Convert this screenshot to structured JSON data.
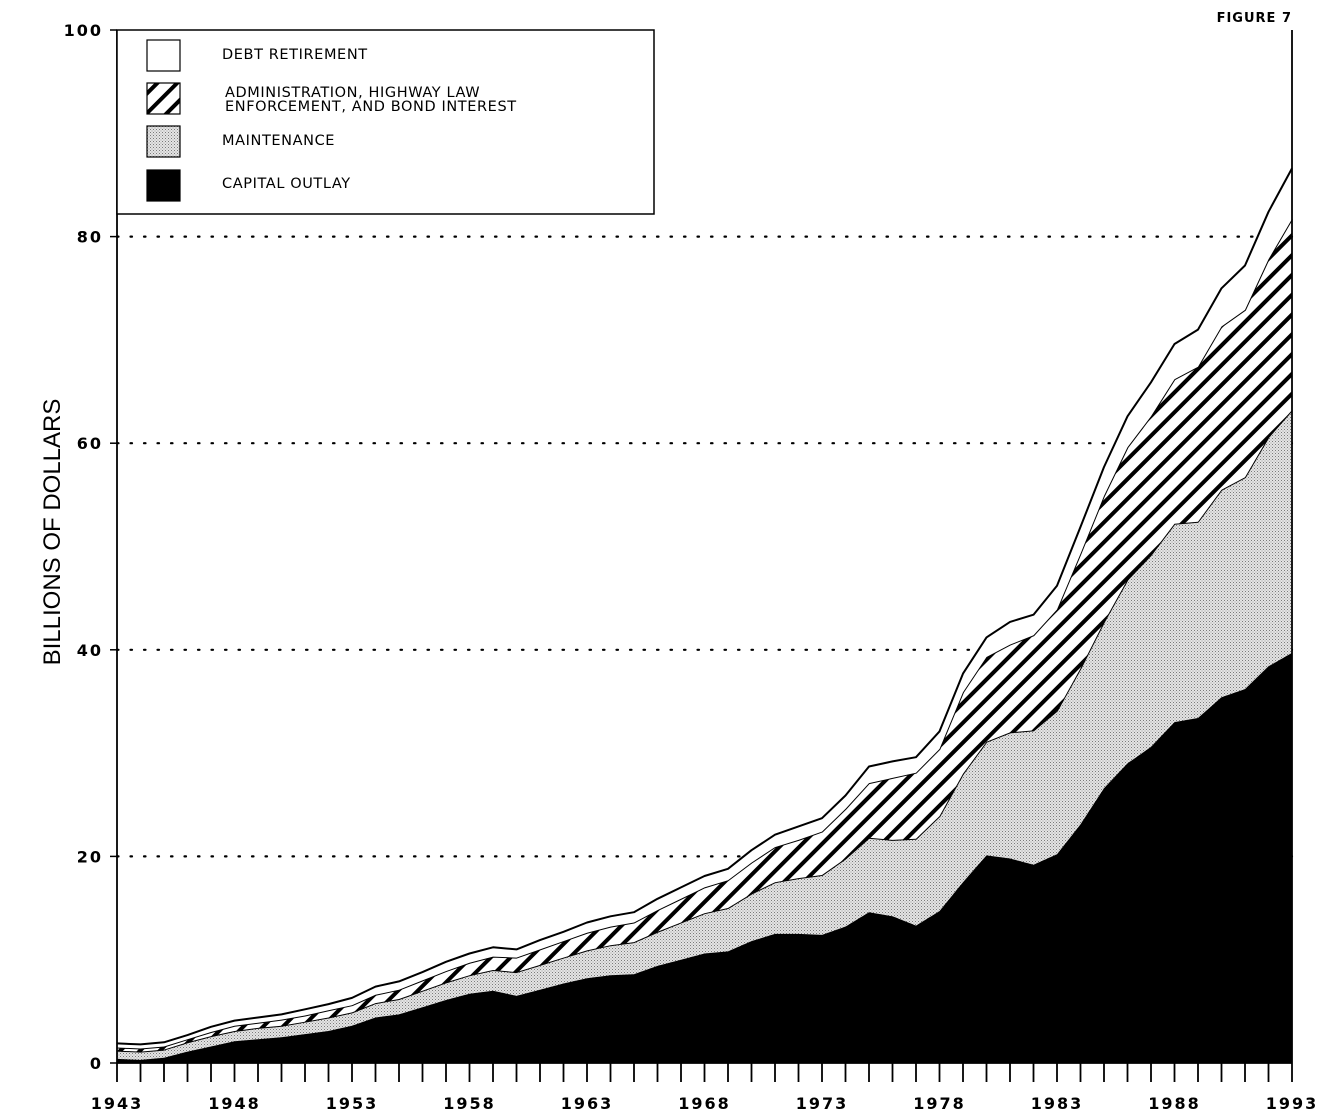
{
  "figure_label": "FIGURE 7",
  "chart_data": {
    "type": "area",
    "stacked": true,
    "ylabel": "BILLIONS OF DOLLARS",
    "xlabel": "",
    "ylim": [
      0,
      100
    ],
    "xlim": [
      1943,
      1993
    ],
    "y_ticks": [
      0,
      20,
      40,
      60,
      80,
      100
    ],
    "x_tick_labels": [
      1943,
      1948,
      1953,
      1958,
      1963,
      1968,
      1973,
      1978,
      1983,
      1988,
      1993
    ],
    "grid": "dotted horizontal at 20, 40, 60, 80",
    "legend_position": "top-left",
    "x": [
      1943,
      1944,
      1945,
      1946,
      1947,
      1948,
      1949,
      1950,
      1951,
      1952,
      1953,
      1954,
      1955,
      1956,
      1957,
      1958,
      1959,
      1960,
      1961,
      1962,
      1963,
      1964,
      1965,
      1966,
      1967,
      1968,
      1969,
      1970,
      1971,
      1972,
      1973,
      1974,
      1975,
      1976,
      1977,
      1978,
      1979,
      1980,
      1981,
      1982,
      1983,
      1984,
      1985,
      1986,
      1987,
      1988,
      1989,
      1990,
      1991,
      1992,
      1993
    ],
    "series": [
      {
        "name": "CAPITAL OUTLAY",
        "fill": "solid",
        "color": "#000000",
        "values": [
          0.4,
          0.3,
          0.5,
          1.1,
          1.6,
          2.1,
          2.3,
          2.5,
          2.8,
          3.1,
          3.6,
          4.4,
          4.7,
          5.4,
          6.1,
          6.7,
          7.0,
          6.5,
          7.1,
          7.7,
          8.2,
          8.5,
          8.6,
          9.4,
          10.0,
          10.6,
          10.8,
          11.8,
          12.5,
          12.5,
          12.4,
          13.2,
          14.6,
          14.2,
          13.3,
          14.7,
          17.5,
          20.1,
          19.8,
          19.2,
          20.2,
          23.1,
          26.6,
          29.0,
          30.6,
          33.0,
          33.4,
          35.4,
          36.2,
          38.4,
          39.7
        ]
      },
      {
        "name": "MAINTENANCE",
        "fill": "dotted",
        "color": "#cfcfcf",
        "values": [
          0.8,
          0.8,
          0.8,
          0.9,
          1.0,
          1.0,
          1.1,
          1.1,
          1.2,
          1.3,
          1.3,
          1.4,
          1.5,
          1.6,
          1.7,
          1.8,
          2.0,
          2.3,
          2.4,
          2.5,
          2.7,
          2.9,
          3.1,
          3.3,
          3.6,
          3.9,
          4.2,
          4.6,
          5.0,
          5.4,
          5.8,
          6.6,
          7.2,
          7.4,
          8.4,
          9.2,
          10.5,
          11.0,
          12.2,
          13.0,
          13.9,
          15.1,
          16.1,
          17.8,
          18.6,
          19.2,
          19.0,
          20.1,
          20.5,
          22.2,
          23.5
        ]
      },
      {
        "name": "ADMINISTRATION, HIGHWAY LAW ENFORCEMENT, AND BOND INTEREST",
        "fill": "hatched",
        "color": "#000000",
        "values": [
          0.3,
          0.3,
          0.3,
          0.3,
          0.4,
          0.5,
          0.5,
          0.6,
          0.6,
          0.7,
          0.7,
          0.8,
          0.9,
          1.0,
          1.1,
          1.2,
          1.3,
          1.4,
          1.5,
          1.6,
          1.7,
          1.8,
          1.9,
          2.1,
          2.3,
          2.5,
          2.7,
          3.0,
          3.4,
          3.7,
          4.2,
          4.8,
          5.3,
          6.0,
          6.4,
          6.5,
          7.9,
          8.2,
          8.5,
          9.2,
          9.8,
          11.1,
          12.2,
          12.8,
          13.4,
          14.0,
          15.0,
          15.8,
          16.2,
          17.2,
          18.5
        ]
      },
      {
        "name": "DEBT RETIREMENT",
        "fill": "white",
        "color": "#ffffff",
        "values": [
          0.4,
          0.4,
          0.4,
          0.4,
          0.5,
          0.5,
          0.5,
          0.5,
          0.6,
          0.6,
          0.7,
          0.8,
          0.8,
          0.8,
          0.9,
          0.9,
          0.9,
          0.8,
          0.9,
          0.9,
          1.0,
          1.0,
          1.0,
          1.1,
          1.1,
          1.1,
          1.1,
          1.2,
          1.2,
          1.3,
          1.3,
          1.3,
          1.6,
          1.6,
          1.5,
          1.7,
          1.8,
          1.9,
          2.2,
          2.0,
          2.3,
          2.6,
          2.8,
          3.0,
          3.3,
          3.4,
          3.6,
          3.7,
          4.3,
          4.6,
          4.9
        ]
      }
    ]
  }
}
